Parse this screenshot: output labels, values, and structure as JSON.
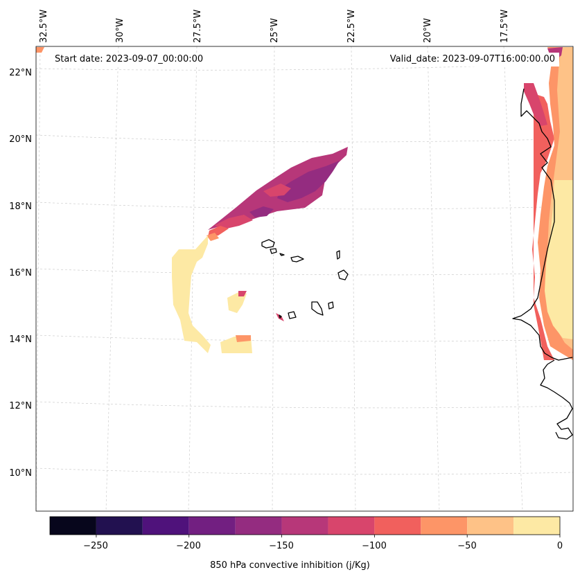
{
  "header": {
    "start_date": "Start date: 2023-09-07_00:00:00",
    "valid_date": "Valid_date: 2023-09-07T16:00:00.00"
  },
  "map": {
    "region": "Eastern tropical Atlantic, Cape Verde islands and West African coast",
    "lon_labels": [
      "32.5°W",
      "30°W",
      "27.5°W",
      "25°W",
      "22.5°W",
      "20°W",
      "17.5°W"
    ],
    "lat_labels": [
      "22°N",
      "20°N",
      "18°N",
      "16°N",
      "14°N",
      "12°N",
      "10°N"
    ]
  },
  "colorbar": {
    "title": "850 hPa convective inhibition (j/Kg)",
    "tick_labels": [
      "−250",
      "−200",
      "−150",
      "−100",
      "−50",
      "0"
    ],
    "bounds": [
      -275,
      -250,
      -225,
      -200,
      -175,
      -150,
      -125,
      -100,
      -75,
      -50,
      -25,
      0
    ],
    "colors": [
      "#07061c",
      "#221150",
      "#4f127b",
      "#721f81",
      "#942c80",
      "#b73779",
      "#d8456c",
      "#f1605d",
      "#fd9567",
      "#fec287",
      "#fde9a4"
    ]
  }
}
